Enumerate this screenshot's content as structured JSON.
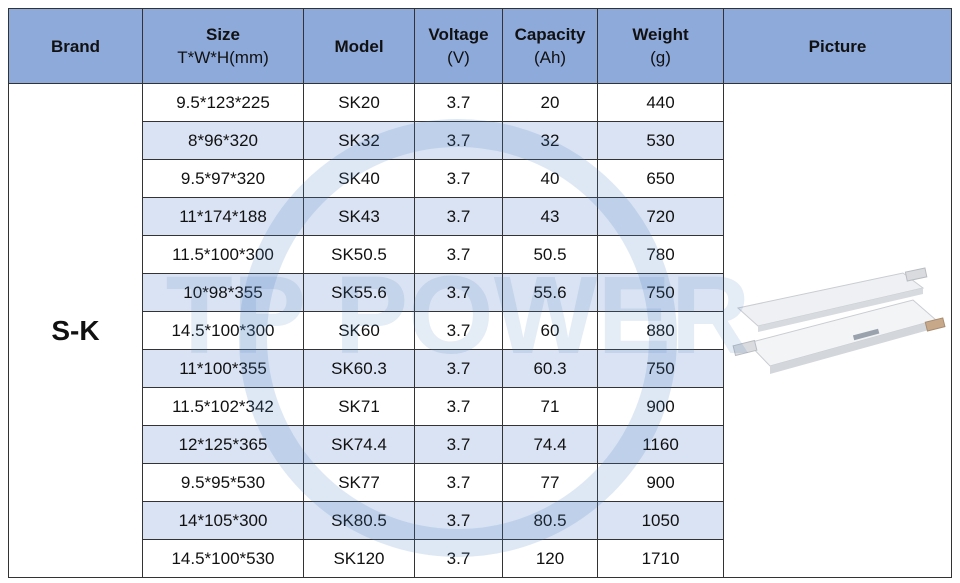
{
  "table": {
    "header": [
      {
        "title": "Brand"
      },
      {
        "title": "Size",
        "unit": "T*W*H(mm)"
      },
      {
        "title": "Model"
      },
      {
        "title": "Voltage",
        "unit": "(V)"
      },
      {
        "title": "Capacity",
        "unit": "(Ah)"
      },
      {
        "title": "Weight",
        "unit": "(g)"
      },
      {
        "title": "Picture"
      }
    ],
    "brand": "S-K",
    "rows": [
      [
        "9.5*123*225",
        "SK20",
        "3.7",
        "20",
        "440"
      ],
      [
        "8*96*320",
        "SK32",
        "3.7",
        "32",
        "530"
      ],
      [
        "9.5*97*320",
        "SK40",
        "3.7",
        "40",
        "650"
      ],
      [
        "11*174*188",
        "SK43",
        "3.7",
        "43",
        "720"
      ],
      [
        "11.5*100*300",
        "SK50.5",
        "3.7",
        "50.5",
        "780"
      ],
      [
        "10*98*355",
        "SK55.6",
        "3.7",
        "55.6",
        "750"
      ],
      [
        "14.5*100*300",
        "SK60",
        "3.7",
        "60",
        "880"
      ],
      [
        "11*100*355",
        "SK60.3",
        "3.7",
        "60.3",
        "750"
      ],
      [
        "11.5*102*342",
        "SK71",
        "3.7",
        "71",
        "900"
      ],
      [
        "12*125*365",
        "SK74.4",
        "3.7",
        "74.4",
        "1160"
      ],
      [
        "9.5*95*530",
        "SK77",
        "3.7",
        "77",
        "900"
      ],
      [
        "14*105*300",
        "SK80.5",
        "3.7",
        "80.5",
        "1050"
      ],
      [
        "14.5*100*530",
        "SK120",
        "3.7",
        "120",
        "1710"
      ]
    ]
  },
  "watermark": "TP POWER"
}
